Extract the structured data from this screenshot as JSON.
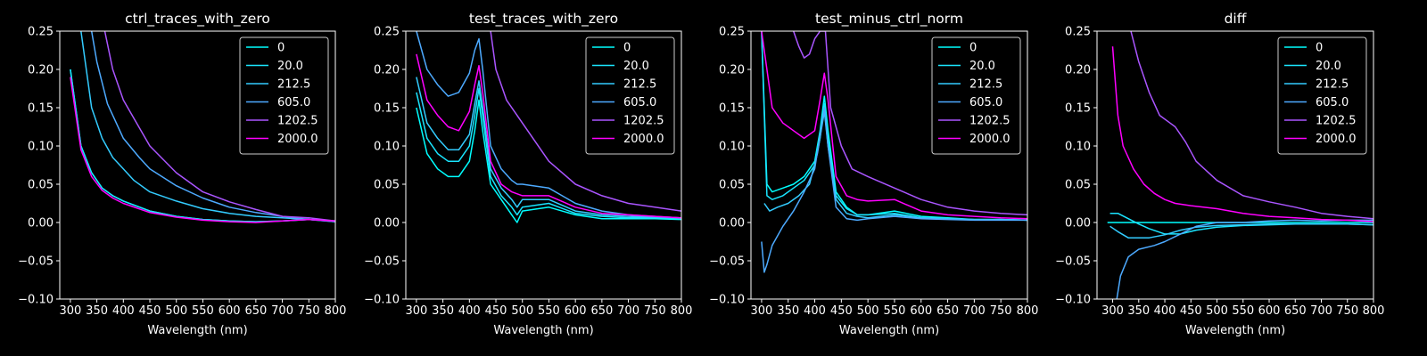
{
  "figure": {
    "background": "#000000",
    "foreground": "#ffffff"
  },
  "chart_data": [
    {
      "type": "line",
      "title": "ctrl_traces_with_zero",
      "xlabel": "Wavelength (nm)",
      "ylabel": "",
      "xlim": [
        280,
        800
      ],
      "ylim": [
        -0.1,
        0.25
      ],
      "xticks": [
        300,
        350,
        400,
        450,
        500,
        550,
        600,
        650,
        700,
        750,
        800
      ],
      "yticks": [
        -0.1,
        -0.05,
        0.0,
        0.05,
        0.1,
        0.15,
        0.2,
        0.25
      ],
      "ytick_labels": [
        "−0.10",
        "−0.05",
        "0.00",
        "0.05",
        "0.10",
        "0.15",
        "0.20",
        "0.25"
      ],
      "legend": "top-right",
      "series": [
        {
          "name": "0",
          "color": "#00ffff",
          "x": [
            300,
            320,
            340,
            360,
            380,
            400,
            450,
            500,
            550,
            600,
            650,
            700,
            750,
            800
          ],
          "y": [
            0.2,
            0.1,
            0.065,
            0.045,
            0.035,
            0.028,
            0.015,
            0.008,
            0.004,
            0.002,
            0.001,
            0.002,
            0.004,
            0.002
          ]
        },
        {
          "name": "20.0",
          "color": "#1ae5ff",
          "x": [
            300,
            320,
            340,
            360,
            380,
            400,
            450,
            500,
            550,
            600,
            650,
            700,
            750,
            800
          ],
          "y": [
            0.2,
            0.1,
            0.065,
            0.045,
            0.035,
            0.028,
            0.015,
            0.008,
            0.004,
            0.002,
            0.001,
            0.002,
            0.004,
            0.002
          ]
        },
        {
          "name": "212.5",
          "color": "#33ccff",
          "x": [
            320,
            340,
            360,
            380,
            400,
            420,
            450,
            500,
            550,
            600,
            650,
            700,
            750,
            800
          ],
          "y": [
            0.25,
            0.15,
            0.11,
            0.085,
            0.07,
            0.055,
            0.04,
            0.028,
            0.018,
            0.012,
            0.008,
            0.006,
            0.004,
            0.001
          ]
        },
        {
          "name": "605.0",
          "color": "#4daaff",
          "x": [
            340,
            350,
            370,
            400,
            430,
            450,
            500,
            550,
            600,
            650,
            700,
            750,
            800
          ],
          "y": [
            0.25,
            0.21,
            0.155,
            0.11,
            0.085,
            0.07,
            0.048,
            0.032,
            0.02,
            0.013,
            0.008,
            0.004,
            0.001
          ]
        },
        {
          "name": "1202.5",
          "color": "#aa55ff",
          "x": [
            365,
            380,
            400,
            450,
            500,
            550,
            600,
            650,
            700,
            750,
            800
          ],
          "y": [
            0.25,
            0.2,
            0.16,
            0.1,
            0.065,
            0.04,
            0.027,
            0.017,
            0.008,
            0.006,
            0.002
          ]
        },
        {
          "name": "2000.0",
          "color": "#ff00ff",
          "x": [
            300,
            320,
            340,
            360,
            380,
            400,
            450,
            500,
            550,
            600,
            650,
            700,
            750,
            800
          ],
          "y": [
            0.19,
            0.095,
            0.06,
            0.042,
            0.032,
            0.025,
            0.013,
            0.007,
            0.003,
            0.001,
            0.0,
            0.002,
            0.004,
            0.002
          ]
        }
      ]
    },
    {
      "type": "line",
      "title": "test_traces_with_zero",
      "xlabel": "Wavelength (nm)",
      "ylabel": "",
      "xlim": [
        280,
        800
      ],
      "ylim": [
        -0.1,
        0.25
      ],
      "xticks": [
        300,
        350,
        400,
        450,
        500,
        550,
        600,
        650,
        700,
        750,
        800
      ],
      "yticks": [
        -0.1,
        -0.05,
        0.0,
        0.05,
        0.1,
        0.15,
        0.2,
        0.25
      ],
      "ytick_labels": [
        "−0.10",
        "−0.05",
        "0.00",
        "0.05",
        "0.10",
        "0.15",
        "0.20",
        "0.25"
      ],
      "legend": "top-right",
      "series": [
        {
          "name": "0",
          "color": "#00ffff",
          "x": [
            300,
            320,
            340,
            360,
            380,
            400,
            410,
            418,
            425,
            440,
            460,
            480,
            490,
            500,
            550,
            600,
            650,
            700,
            750,
            800
          ],
          "y": [
            0.15,
            0.09,
            0.07,
            0.06,
            0.06,
            0.08,
            0.12,
            0.16,
            0.12,
            0.05,
            0.03,
            0.01,
            0.0,
            0.015,
            0.02,
            0.01,
            0.005,
            0.005,
            0.005,
            0.004
          ]
        },
        {
          "name": "20.0",
          "color": "#1ae5ff",
          "x": [
            300,
            320,
            340,
            360,
            380,
            400,
            410,
            418,
            425,
            440,
            460,
            480,
            490,
            500,
            550,
            600,
            650,
            700,
            750,
            800
          ],
          "y": [
            0.17,
            0.11,
            0.09,
            0.08,
            0.08,
            0.1,
            0.14,
            0.175,
            0.14,
            0.06,
            0.035,
            0.02,
            0.01,
            0.02,
            0.025,
            0.012,
            0.008,
            0.006,
            0.006,
            0.005
          ]
        },
        {
          "name": "212.5",
          "color": "#33ccff",
          "x": [
            300,
            320,
            340,
            360,
            380,
            400,
            410,
            418,
            425,
            440,
            460,
            480,
            490,
            500,
            550,
            600,
            650,
            700,
            750,
            800
          ],
          "y": [
            0.19,
            0.13,
            0.11,
            0.095,
            0.095,
            0.115,
            0.155,
            0.185,
            0.15,
            0.07,
            0.045,
            0.03,
            0.02,
            0.03,
            0.03,
            0.015,
            0.01,
            0.008,
            0.007,
            0.006
          ]
        },
        {
          "name": "605.0",
          "color": "#4daaff",
          "x": [
            300,
            320,
            340,
            360,
            380,
            400,
            410,
            418,
            425,
            440,
            460,
            480,
            490,
            500,
            550,
            600,
            650,
            700,
            750,
            800
          ],
          "y": [
            0.25,
            0.2,
            0.18,
            0.165,
            0.17,
            0.195,
            0.225,
            0.24,
            0.2,
            0.1,
            0.07,
            0.055,
            0.05,
            0.05,
            0.045,
            0.025,
            0.015,
            0.01,
            0.008,
            0.006
          ]
        },
        {
          "name": "1202.5",
          "color": "#aa55ff",
          "x": [
            440,
            450,
            470,
            500,
            550,
            600,
            650,
            700,
            750,
            800
          ],
          "y": [
            0.25,
            0.2,
            0.16,
            0.13,
            0.08,
            0.05,
            0.035,
            0.025,
            0.02,
            0.015
          ]
        },
        {
          "name": "2000.0",
          "color": "#ff00ff",
          "x": [
            300,
            320,
            340,
            360,
            380,
            400,
            410,
            418,
            425,
            440,
            460,
            480,
            500,
            550,
            600,
            650,
            700,
            750,
            800
          ],
          "y": [
            0.22,
            0.16,
            0.14,
            0.125,
            0.12,
            0.145,
            0.18,
            0.205,
            0.17,
            0.08,
            0.05,
            0.04,
            0.035,
            0.035,
            0.02,
            0.012,
            0.01,
            0.008,
            0.006
          ]
        }
      ]
    },
    {
      "type": "line",
      "title": "test_minus_ctrl_norm",
      "xlabel": "Wavelength (nm)",
      "ylabel": "",
      "xlim": [
        280,
        800
      ],
      "ylim": [
        -0.1,
        0.25
      ],
      "xticks": [
        300,
        350,
        400,
        450,
        500,
        550,
        600,
        650,
        700,
        750,
        800
      ],
      "yticks": [
        -0.1,
        -0.05,
        0.0,
        0.05,
        0.1,
        0.15,
        0.2,
        0.25
      ],
      "ytick_labels": [
        "−0.10",
        "−0.05",
        "0.00",
        "0.05",
        "0.10",
        "0.15",
        "0.20",
        "0.25"
      ],
      "legend": "top-right",
      "series": [
        {
          "name": "0",
          "color": "#00ffff",
          "x": [
            300,
            310,
            320,
            340,
            360,
            380,
            400,
            410,
            418,
            425,
            440,
            460,
            480,
            500,
            550,
            600,
            650,
            700,
            750,
            800
          ],
          "y": [
            0.25,
            0.05,
            0.04,
            0.045,
            0.05,
            0.06,
            0.08,
            0.12,
            0.165,
            0.12,
            0.04,
            0.02,
            0.01,
            0.01,
            0.015,
            0.008,
            0.006,
            0.004,
            0.004,
            0.003
          ]
        },
        {
          "name": "20.0",
          "color": "#1ae5ff",
          "x": [
            300,
            310,
            320,
            340,
            360,
            380,
            400,
            410,
            418,
            425,
            440,
            460,
            480,
            500,
            550,
            600,
            650,
            700,
            750,
            800
          ],
          "y": [
            0.25,
            0.035,
            0.03,
            0.035,
            0.045,
            0.055,
            0.075,
            0.11,
            0.155,
            0.11,
            0.035,
            0.018,
            0.01,
            0.01,
            0.012,
            0.006,
            0.005,
            0.004,
            0.004,
            0.003
          ]
        },
        {
          "name": "212.5",
          "color": "#33ccff",
          "x": [
            305,
            315,
            330,
            350,
            370,
            390,
            405,
            418,
            425,
            440,
            460,
            480,
            500,
            550,
            600,
            650,
            700,
            750,
            800
          ],
          "y": [
            0.025,
            0.015,
            0.02,
            0.025,
            0.035,
            0.05,
            0.09,
            0.145,
            0.1,
            0.03,
            0.012,
            0.008,
            0.006,
            0.01,
            0.006,
            0.005,
            0.004,
            0.004,
            0.003
          ]
        },
        {
          "name": "605.0",
          "color": "#4daaff",
          "x": [
            300,
            305,
            310,
            320,
            340,
            360,
            380,
            400,
            418,
            425,
            440,
            460,
            480,
            500,
            550,
            600,
            650,
            700,
            750,
            800
          ],
          "y": [
            -0.025,
            -0.065,
            -0.055,
            -0.03,
            -0.005,
            0.015,
            0.04,
            0.07,
            0.15,
            0.1,
            0.02,
            0.005,
            0.003,
            0.005,
            0.008,
            0.005,
            0.004,
            0.003,
            0.003,
            0.003
          ]
        },
        {
          "name": "1202.5",
          "color": "#aa55ff",
          "x": [
            360,
            370,
            380,
            390,
            400,
            410,
            420,
            430,
            450,
            470,
            500,
            550,
            600,
            650,
            700,
            750,
            800
          ],
          "y": [
            0.25,
            0.23,
            0.215,
            0.22,
            0.24,
            0.25,
            0.25,
            0.15,
            0.1,
            0.07,
            0.06,
            0.045,
            0.03,
            0.02,
            0.015,
            0.012,
            0.01
          ]
        },
        {
          "name": "2000.0",
          "color": "#ff00ff",
          "x": [
            300,
            310,
            320,
            340,
            360,
            380,
            400,
            410,
            418,
            425,
            440,
            460,
            480,
            500,
            550,
            600,
            650,
            700,
            750,
            800
          ],
          "y": [
            0.25,
            0.2,
            0.15,
            0.13,
            0.12,
            0.11,
            0.12,
            0.16,
            0.195,
            0.16,
            0.06,
            0.035,
            0.03,
            0.028,
            0.03,
            0.015,
            0.01,
            0.008,
            0.006,
            0.005
          ]
        }
      ]
    },
    {
      "type": "line",
      "title": "diff",
      "xlabel": "Wavelength (nm)",
      "ylabel": "",
      "xlim": [
        270,
        800
      ],
      "ylim": [
        -0.1,
        0.25
      ],
      "xticks": [
        300,
        350,
        400,
        450,
        500,
        550,
        600,
        650,
        700,
        750,
        800
      ],
      "yticks": [
        -0.1,
        -0.05,
        0.0,
        0.05,
        0.1,
        0.15,
        0.2,
        0.25
      ],
      "ytick_labels": [
        "−0.10",
        "−0.05",
        "0.00",
        "0.05",
        "0.10",
        "0.15",
        "0.20",
        "0.25"
      ],
      "legend": "top-right",
      "series": [
        {
          "name": "0",
          "color": "#00ffff",
          "x": [
            290,
            800
          ],
          "y": [
            0.0,
            0.0
          ]
        },
        {
          "name": "20.0",
          "color": "#1ae5ff",
          "x": [
            295,
            310,
            330,
            350,
            370,
            400,
            430,
            460,
            500,
            550,
            600,
            650,
            700,
            750,
            800
          ],
          "y": [
            0.012,
            0.012,
            0.005,
            -0.002,
            -0.008,
            -0.015,
            -0.015,
            -0.01,
            -0.006,
            -0.004,
            -0.003,
            -0.002,
            -0.002,
            -0.002,
            -0.003
          ]
        },
        {
          "name": "212.5",
          "color": "#33ccff",
          "x": [
            295,
            310,
            330,
            350,
            370,
            400,
            430,
            460,
            500,
            550,
            600,
            650,
            700,
            750,
            800
          ],
          "y": [
            -0.005,
            -0.012,
            -0.02,
            -0.02,
            -0.02,
            -0.016,
            -0.01,
            -0.006,
            -0.004,
            -0.003,
            -0.002,
            -0.002,
            -0.002,
            -0.002,
            -0.003
          ]
        },
        {
          "name": "605.0",
          "color": "#4daaff",
          "x": [
            308,
            315,
            330,
            350,
            380,
            400,
            430,
            460,
            500,
            550,
            600,
            650,
            700,
            750,
            800
          ],
          "y": [
            -0.1,
            -0.07,
            -0.045,
            -0.035,
            -0.03,
            -0.025,
            -0.015,
            -0.005,
            0.0,
            0.0,
            0.002,
            0.003,
            0.002,
            0.003,
            0.003
          ]
        },
        {
          "name": "1202.5",
          "color": "#aa55ff",
          "x": [
            335,
            350,
            370,
            390,
            410,
            420,
            440,
            460,
            500,
            550,
            600,
            650,
            700,
            750,
            800
          ],
          "y": [
            0.25,
            0.21,
            0.17,
            0.14,
            0.13,
            0.125,
            0.105,
            0.08,
            0.055,
            0.035,
            0.027,
            0.02,
            0.012,
            0.008,
            0.005
          ]
        },
        {
          "name": "2000.0",
          "color": "#ff00ff",
          "x": [
            300,
            310,
            320,
            340,
            360,
            380,
            400,
            420,
            450,
            500,
            550,
            600,
            650,
            700,
            750,
            800
          ],
          "y": [
            0.23,
            0.14,
            0.1,
            0.07,
            0.05,
            0.038,
            0.03,
            0.025,
            0.022,
            0.018,
            0.012,
            0.008,
            0.006,
            0.004,
            0.003,
            0.001
          ]
        }
      ]
    }
  ]
}
